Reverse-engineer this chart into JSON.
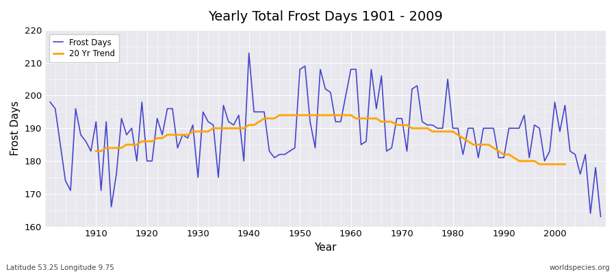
{
  "title": "Yearly Total Frost Days 1901 - 2009",
  "xlabel": "Year",
  "ylabel": "Frost Days",
  "footnote_left": "Latitude 53.25 Longitude 9.75",
  "footnote_right": "worldspecies.org",
  "legend_labels": [
    "Frost Days",
    "20 Yr Trend"
  ],
  "line_color": "#4444cc",
  "trend_color": "#FFA500",
  "bg_color": "#e8e8ee",
  "fig_bg_color": "#ffffff",
  "ylim": [
    160,
    220
  ],
  "yticks": [
    160,
    170,
    180,
    190,
    200,
    210,
    220
  ],
  "xticks": [
    1910,
    1920,
    1930,
    1940,
    1950,
    1960,
    1970,
    1980,
    1990,
    2000
  ],
  "years": [
    1901,
    1902,
    1903,
    1904,
    1905,
    1906,
    1907,
    1908,
    1909,
    1910,
    1911,
    1912,
    1913,
    1914,
    1915,
    1916,
    1917,
    1918,
    1919,
    1920,
    1921,
    1922,
    1923,
    1924,
    1925,
    1926,
    1927,
    1928,
    1929,
    1930,
    1931,
    1932,
    1933,
    1934,
    1935,
    1936,
    1937,
    1938,
    1939,
    1940,
    1941,
    1942,
    1943,
    1944,
    1945,
    1946,
    1947,
    1948,
    1949,
    1950,
    1951,
    1952,
    1953,
    1954,
    1955,
    1956,
    1957,
    1958,
    1959,
    1960,
    1961,
    1962,
    1963,
    1964,
    1965,
    1966,
    1967,
    1968,
    1969,
    1970,
    1971,
    1972,
    1973,
    1974,
    1975,
    1976,
    1977,
    1978,
    1979,
    1980,
    1981,
    1982,
    1983,
    1984,
    1985,
    1986,
    1987,
    1988,
    1989,
    1990,
    1991,
    1992,
    1993,
    1994,
    1995,
    1996,
    1997,
    1998,
    1999,
    2000,
    2001,
    2002,
    2003,
    2004,
    2005,
    2006,
    2007,
    2008,
    2009
  ],
  "frost_days": [
    198,
    196,
    185,
    174,
    171,
    196,
    188,
    186,
    183,
    192,
    171,
    192,
    166,
    176,
    193,
    188,
    190,
    180,
    198,
    180,
    180,
    193,
    188,
    196,
    196,
    184,
    188,
    187,
    191,
    175,
    195,
    192,
    191,
    175,
    197,
    192,
    191,
    194,
    180,
    213,
    195,
    195,
    195,
    183,
    181,
    182,
    182,
    183,
    184,
    208,
    209,
    192,
    184,
    208,
    202,
    201,
    192,
    192,
    200,
    208,
    208,
    185,
    186,
    208,
    196,
    206,
    183,
    184,
    193,
    193,
    183,
    202,
    203,
    192,
    191,
    191,
    190,
    190,
    205,
    190,
    190,
    182,
    190,
    190,
    181,
    190,
    190,
    190,
    181,
    181,
    190,
    190,
    190,
    194,
    181,
    191,
    190,
    180,
    183,
    198,
    189,
    197,
    183,
    182,
    176,
    182,
    164,
    178,
    163
  ],
  "trend_values": [
    null,
    null,
    null,
    null,
    null,
    null,
    null,
    null,
    null,
    183,
    183,
    184,
    184,
    184,
    184,
    185,
    185,
    185,
    186,
    186,
    186,
    187,
    187,
    188,
    188,
    188,
    188,
    188,
    189,
    189,
    189,
    189,
    190,
    190,
    190,
    190,
    190,
    190,
    190,
    191,
    191,
    192,
    193,
    193,
    193,
    194,
    194,
    194,
    194,
    194,
    194,
    194,
    194,
    194,
    194,
    194,
    194,
    194,
    194,
    194,
    193,
    193,
    193,
    193,
    193,
    192,
    192,
    192,
    191,
    191,
    191,
    190,
    190,
    190,
    190,
    189,
    189,
    189,
    189,
    189,
    188,
    187,
    186,
    185,
    185,
    185,
    185,
    184,
    183,
    182,
    182,
    181,
    180,
    180,
    180,
    180,
    179,
    179,
    179,
    179,
    179,
    179,
    null,
    null,
    null,
    null,
    null,
    null,
    null
  ]
}
